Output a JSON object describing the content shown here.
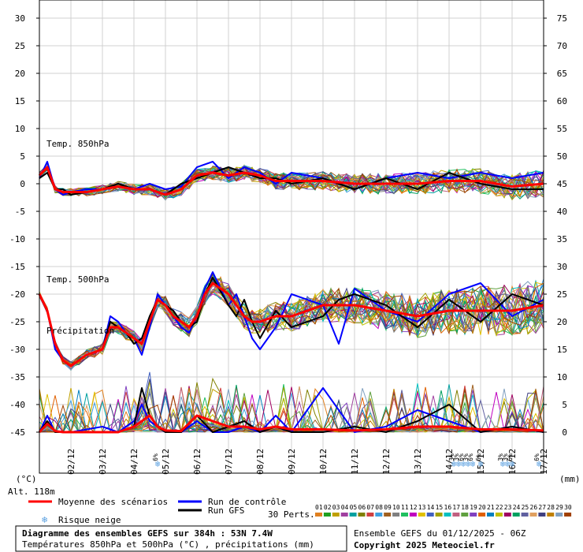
{
  "chart_data": {
    "type": "line",
    "title": "Diagramme des ensembles GEFS sur 384h : 53N 7.4W",
    "subtitle": "Températures 850hPa et 500hPa (°C) , précipitations (mm)",
    "run_info": "Ensemble GEFS du 01/12/2025 - 06Z",
    "copyright": "Copyright 2025 Meteociel.fr",
    "altitude": "Alt. 118m",
    "left_unit": "(°C)",
    "right_unit": "(mm)",
    "left_axis": {
      "ticks": [
        "30",
        "25",
        "20",
        "15",
        "10",
        "5",
        "0",
        "-5",
        "-10",
        "-15",
        "-20",
        "-25",
        "-30",
        "-35",
        "-40",
        "-45"
      ],
      "values": [
        30,
        25,
        20,
        15,
        10,
        5,
        0,
        -5,
        -10,
        -15,
        -20,
        -25,
        -30,
        -35,
        -40,
        -45
      ],
      "ylim": [
        -45,
        30
      ]
    },
    "right_axis": {
      "ticks": [
        "75",
        "70",
        "65",
        "60",
        "55",
        "50",
        "45",
        "40",
        "35",
        "30",
        "25",
        "20",
        "15",
        "10",
        "5",
        "0"
      ],
      "values": [
        75,
        70,
        65,
        60,
        55,
        50,
        45,
        40,
        35,
        30,
        25,
        20,
        15,
        10,
        5,
        0
      ],
      "ylim": [
        0,
        75
      ]
    },
    "x_dates": [
      "02/12",
      "03/12",
      "04/12",
      "05/12",
      "06/12",
      "07/12",
      "08/12",
      "09/12",
      "10/12",
      "11/12",
      "12/12",
      "13/12",
      "14/12",
      "15/12",
      "16/12",
      "17/12"
    ],
    "section_labels": {
      "t850": "Temp. 850hPa",
      "t500": "Temp. 500hPa",
      "precip": "Précipitation"
    },
    "legend": {
      "mean": "Moyenne des scénarios",
      "control": "Run de contrôle",
      "gfs": "Run GFS",
      "snow": "Risque neige",
      "perts_label": "30 Perts."
    },
    "colors": {
      "mean": "#ff0000",
      "control": "#0000ff",
      "gfs": "#000000",
      "snow": "#5aa0e0",
      "grid": "#d0d0d0"
    },
    "perturbation_numbers": [
      "01",
      "02",
      "03",
      "04",
      "05",
      "06",
      "07",
      "08",
      "09",
      "10",
      "11",
      "12",
      "13",
      "14",
      "15",
      "16",
      "17",
      "18",
      "19",
      "20",
      "21",
      "22",
      "23",
      "24",
      "25",
      "26",
      "27",
      "28",
      "29",
      "30"
    ],
    "perturbation_colors": [
      "#e08020",
      "#20a020",
      "#c0a000",
      "#a040a0",
      "#00a0a0",
      "#808000",
      "#d04040",
      "#40a0e0",
      "#a06020",
      "#808080",
      "#20c060",
      "#c000c0",
      "#e0c000",
      "#4060c0",
      "#a0a000",
      "#00c0c0",
      "#c06080",
      "#60a040",
      "#8040c0",
      "#e06000",
      "#0080c0",
      "#c0c000",
      "#a00060",
      "#00a060",
      "#6060a0",
      "#e0a060",
      "#404080",
      "#c08000",
      "#80a0c0",
      "#a04000"
    ],
    "snow_risk": [
      {
        "x_day": 3.75,
        "pct": "6%"
      },
      {
        "x_day": 13.15,
        "pct": "3%"
      },
      {
        "x_day": 13.3,
        "pct": "3%"
      },
      {
        "x_day": 13.45,
        "pct": "6%"
      },
      {
        "x_day": 13.6,
        "pct": "3%"
      },
      {
        "x_day": 13.75,
        "pct": "6%"
      },
      {
        "x_day": 14.0,
        "pct": "6%"
      },
      {
        "x_day": 14.7,
        "pct": "3%"
      },
      {
        "x_day": 14.85,
        "pct": "3%"
      },
      {
        "x_day": 15.0,
        "pct": "6%"
      },
      {
        "x_day": 15.85,
        "pct": "6%"
      }
    ],
    "series": [
      {
        "name": "Moyenne 850hPa",
        "axis": "left",
        "x": [
          0,
          0.25,
          0.5,
          0.75,
          1,
          1.5,
          2,
          2.5,
          3,
          3.5,
          4,
          4.5,
          5,
          5.5,
          6,
          6.5,
          7,
          7.5,
          8,
          9,
          10,
          11,
          12,
          13,
          14,
          15,
          16
        ],
        "values": [
          1.5,
          3,
          -1,
          -1.5,
          -1.5,
          -1.5,
          -1,
          -0.5,
          -1,
          -1,
          -2,
          -1,
          1.5,
          2,
          1.5,
          2,
          1.5,
          0.5,
          0.5,
          0.5,
          0,
          0,
          0,
          0.5,
          0.5,
          -0.5,
          0
        ]
      },
      {
        "name": "Contrôle 850hPa",
        "axis": "left",
        "x": [
          0,
          0.25,
          0.5,
          0.75,
          1,
          1.5,
          2,
          2.5,
          3,
          3.5,
          4,
          4.5,
          5,
          5.5,
          6,
          6.5,
          7,
          7.5,
          8,
          9,
          10,
          11,
          12,
          13,
          14,
          15,
          16
        ],
        "values": [
          1,
          4,
          -1,
          -2,
          -1.5,
          -1,
          -1,
          0,
          -1,
          0,
          -1,
          -0.5,
          3,
          4,
          1,
          3,
          2,
          0,
          2,
          1,
          -1,
          1,
          2,
          1,
          2,
          1,
          2
        ]
      },
      {
        "name": "GFS 850hPa",
        "axis": "left",
        "x": [
          0,
          0.25,
          0.5,
          0.75,
          1,
          1.5,
          2,
          2.5,
          3,
          3.5,
          4,
          4.5,
          5,
          5.5,
          6,
          6.5,
          7,
          7.5,
          8,
          9,
          10,
          11,
          12,
          13,
          14,
          15,
          16
        ],
        "values": [
          1,
          2,
          -1,
          -1,
          -2,
          -1.5,
          -1,
          0,
          -1,
          -1,
          -2,
          0,
          1,
          2,
          3,
          2,
          1,
          1,
          0,
          1,
          -1,
          1,
          -1,
          2,
          0,
          -1,
          -1
        ]
      },
      {
        "name": "Moyenne 500hPa",
        "axis": "left",
        "x": [
          0,
          0.25,
          0.5,
          0.75,
          1,
          1.25,
          1.5,
          2,
          2.25,
          2.5,
          2.75,
          3,
          3.25,
          3.5,
          3.75,
          4,
          4.25,
          4.5,
          4.75,
          5,
          5.25,
          5.5,
          6,
          6.25,
          6.5,
          6.75,
          7,
          7.5,
          8,
          9,
          9.5,
          10,
          11,
          12,
          13,
          14,
          15,
          16
        ],
        "values": [
          -20,
          -23,
          -29,
          -32,
          -33,
          -32,
          -31,
          -30,
          -26,
          -26,
          -27,
          -28,
          -29,
          -25,
          -21,
          -22,
          -24,
          -25,
          -26,
          -24,
          -20,
          -18,
          -20,
          -22,
          -24,
          -25,
          -25,
          -24,
          -24,
          -22,
          -22,
          -22,
          -23,
          -24,
          -23,
          -23,
          -23,
          -22
        ]
      },
      {
        "name": "Contrôle 500hPa",
        "axis": "left",
        "x": [
          0,
          0.25,
          0.5,
          0.75,
          1,
          1.25,
          1.5,
          2,
          2.25,
          2.5,
          2.75,
          3,
          3.25,
          3.5,
          3.75,
          4,
          4.25,
          4.5,
          4.75,
          5,
          5.25,
          5.5,
          6,
          6.25,
          6.5,
          6.75,
          7,
          7.5,
          8,
          9,
          9.5,
          10,
          11,
          12,
          13,
          14,
          15,
          16
        ],
        "values": [
          -20,
          -23,
          -30,
          -32,
          -33,
          -32,
          -31,
          -30,
          -24,
          -25,
          -27,
          -28,
          -31,
          -26,
          -20,
          -22,
          -24,
          -26,
          -27,
          -24,
          -19,
          -16,
          -22,
          -20,
          -24,
          -28,
          -30,
          -26,
          -20,
          -22,
          -29,
          -19,
          -23,
          -25,
          -20,
          -18,
          -24,
          -21
        ]
      },
      {
        "name": "GFS 500hPa",
        "axis": "left",
        "x": [
          0,
          0.25,
          0.5,
          0.75,
          1,
          1.25,
          1.5,
          2,
          2.25,
          2.5,
          2.75,
          3,
          3.25,
          3.5,
          3.75,
          4,
          4.25,
          4.5,
          4.75,
          5,
          5.25,
          5.5,
          6,
          6.25,
          6.5,
          6.75,
          7,
          7.5,
          8,
          9,
          9.5,
          10,
          11,
          12,
          13,
          14,
          15,
          16
        ],
        "values": [
          -20,
          -23,
          -29,
          -32,
          -33,
          -32,
          -31,
          -30,
          -25,
          -26,
          -27,
          -29,
          -28,
          -24,
          -21,
          -22,
          -23,
          -25,
          -26,
          -25,
          -20,
          -17,
          -22,
          -24,
          -21,
          -25,
          -28,
          -23,
          -26,
          -24,
          -21,
          -20,
          -22,
          -26,
          -21,
          -25,
          -20,
          -22
        ]
      },
      {
        "name": "Moyenne précipitations",
        "axis": "right",
        "x": [
          0,
          0.25,
          0.5,
          0.75,
          1,
          1.5,
          2,
          2.5,
          3,
          3.25,
          3.5,
          3.75,
          4,
          4.5,
          5,
          5.5,
          6,
          6.5,
          7,
          7.5,
          8,
          9,
          10,
          11,
          12,
          13,
          14,
          15,
          16
        ],
        "values": [
          0,
          1.5,
          0.2,
          0,
          0,
          0,
          0,
          0,
          1,
          2,
          3,
          1,
          0.3,
          0.2,
          3,
          2,
          1,
          1,
          0.5,
          1,
          0.5,
          0.5,
          0.3,
          0.5,
          1,
          1,
          0.5,
          0.5,
          0.3
        ]
      },
      {
        "name": "Contrôle précipitations",
        "axis": "right",
        "x": [
          0,
          0.25,
          0.5,
          0.75,
          1,
          1.5,
          2,
          2.5,
          3,
          3.25,
          3.5,
          3.75,
          4,
          4.5,
          5,
          5.5,
          6,
          6.5,
          7,
          7.5,
          8,
          9,
          10,
          11,
          12,
          13,
          14,
          15,
          16
        ],
        "values": [
          0,
          3,
          0,
          0,
          0,
          0.5,
          1,
          0,
          2,
          5,
          2,
          1,
          0,
          0,
          2,
          0,
          0,
          1,
          0,
          3,
          0,
          8,
          0,
          1,
          4,
          2,
          0,
          1,
          0
        ]
      },
      {
        "name": "GFS précipitations",
        "axis": "right",
        "x": [
          0,
          0.25,
          0.5,
          0.75,
          1,
          1.5,
          2,
          2.5,
          3,
          3.25,
          3.5,
          3.75,
          4,
          4.5,
          5,
          5.5,
          6,
          6.5,
          7,
          7.5,
          8,
          9,
          10,
          11,
          12,
          13,
          14,
          15,
          16
        ],
        "values": [
          0,
          2,
          0,
          0,
          0,
          0,
          0,
          0,
          1,
          8,
          3,
          1,
          0,
          0,
          3,
          0,
          1,
          2,
          0,
          1,
          0,
          0,
          1,
          0,
          2,
          5,
          0,
          1,
          0
        ]
      }
    ]
  }
}
